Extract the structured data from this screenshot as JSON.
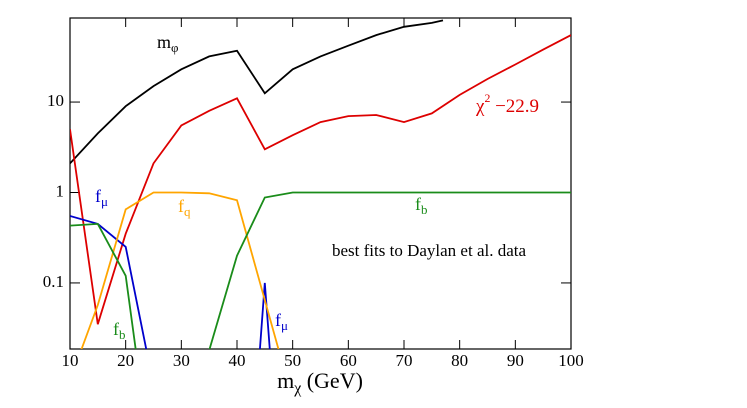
{
  "chart_data": {
    "type": "line",
    "x_label": "mχ (GeV)",
    "xlim": [
      10,
      100
    ],
    "xticks": [
      10,
      20,
      30,
      40,
      50,
      60,
      70,
      80,
      90,
      100
    ],
    "ylim": [
      0.0186,
      85
    ],
    "yticks": [
      0.1,
      1,
      10
    ],
    "log_y": true,
    "series": [
      {
        "name": "mφ",
        "color": "#000000",
        "x": [
          10,
          15,
          20,
          25,
          30,
          35,
          40,
          45,
          50,
          55,
          60,
          65,
          70,
          75,
          77
        ],
        "values": [
          2.1,
          4.5,
          9,
          15,
          23,
          32,
          37,
          12.5,
          23,
          32,
          42,
          55,
          68,
          75,
          80
        ]
      },
      {
        "name": "χ2 −22.9",
        "color": "#dd0000",
        "x": [
          10,
          15,
          20,
          25,
          30,
          35,
          40,
          45,
          50,
          55,
          60,
          65,
          70,
          75,
          80,
          85,
          90,
          95,
          100
        ],
        "values": [
          5,
          0.035,
          0.35,
          2.1,
          5.5,
          8,
          11,
          3,
          4.3,
          6,
          7,
          7.2,
          6,
          7.5,
          12,
          18,
          26,
          38,
          55
        ]
      },
      {
        "name": "fμ",
        "color": "#0000cc",
        "x": [
          10,
          15,
          20,
          24,
          null,
          44,
          45,
          46
        ],
        "values": [
          0.55,
          0.45,
          0.25,
          0.015,
          null,
          0.015,
          0.1,
          0.015
        ]
      },
      {
        "name": "fq",
        "color": "#ffa500",
        "x": [
          12,
          15,
          20,
          25,
          30,
          35,
          40,
          47.5
        ],
        "values": [
          0.018,
          0.057,
          0.65,
          1.0,
          1.0,
          0.98,
          0.82,
          0.018
        ]
      },
      {
        "name": "fb",
        "color": "#1a8c1a",
        "x": [
          10,
          15,
          20,
          22,
          null,
          35,
          40,
          45,
          50,
          100
        ],
        "values": [
          0.43,
          0.45,
          0.12,
          0.015,
          null,
          0.018,
          0.2,
          0.88,
          1.0,
          1.0
        ]
      }
    ],
    "annotations": [
      "fb",
      "fμ",
      "best fits to Daylan et al. data"
    ]
  }
}
